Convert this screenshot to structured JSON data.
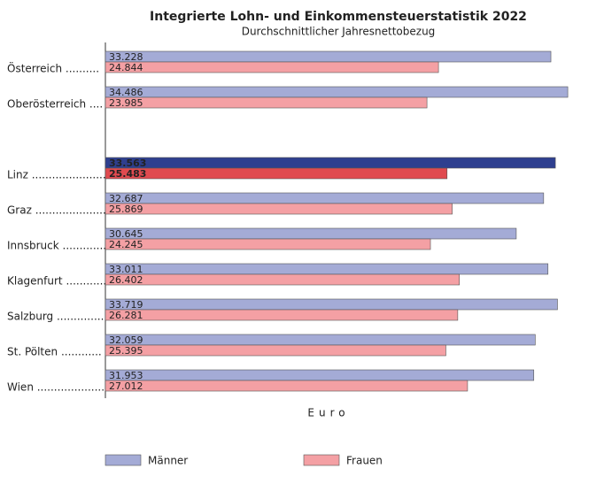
{
  "chart_data": {
    "type": "hbar",
    "title": "Integrierte Lohn- und Einkommensteuerstatistik 2022",
    "subtitle": "Durchschnittlicher Jahresnettobezug",
    "x_label": "Euro",
    "categories": [
      "Österreich ..........",
      "Oberösterreich ....",
      null,
      "Linz ........................",
      "Graz ......................",
      "Innsbruck ..............",
      "Klagenfurt ............",
      "Salzburg ...............",
      "St. Pölten ............",
      "Wien ......................"
    ],
    "xlim": [
      0,
      36000
    ],
    "legend": "bottom",
    "series": [
      {
        "name": "Männer",
        "color": "#a4abd6",
        "colors": [
          "#a4abd6",
          "#a4abd6",
          null,
          "#2e3f8f",
          "#a4abd6",
          "#a4abd6",
          "#a4abd6",
          "#a4abd6",
          "#a4abd6",
          "#a4abd6"
        ],
        "values": [
          33228,
          34486,
          null,
          33563,
          32687,
          30645,
          33011,
          33719,
          32059,
          31953
        ],
        "value_labels": [
          "33.228",
          "34.486",
          null,
          "33.563",
          "32.687",
          "30.645",
          "33.011",
          "33.719",
          "32.059",
          "31.953"
        ]
      },
      {
        "name": "Frauen",
        "color": "#f4a0a4",
        "colors": [
          "#f4a0a4",
          "#f4a0a4",
          null,
          "#e04a4f",
          "#f4a0a4",
          "#f4a0a4",
          "#f4a0a4",
          "#f4a0a4",
          "#f4a0a4",
          "#f4a0a4"
        ],
        "values": [
          24844,
          23985,
          null,
          25483,
          25869,
          24245,
          26402,
          26281,
          25395,
          27012
        ],
        "value_labels": [
          "24.844",
          "23.985",
          null,
          "25.483",
          "25.869",
          "24.245",
          "26.402",
          "26.281",
          "25.395",
          "27.012"
        ]
      }
    ]
  }
}
